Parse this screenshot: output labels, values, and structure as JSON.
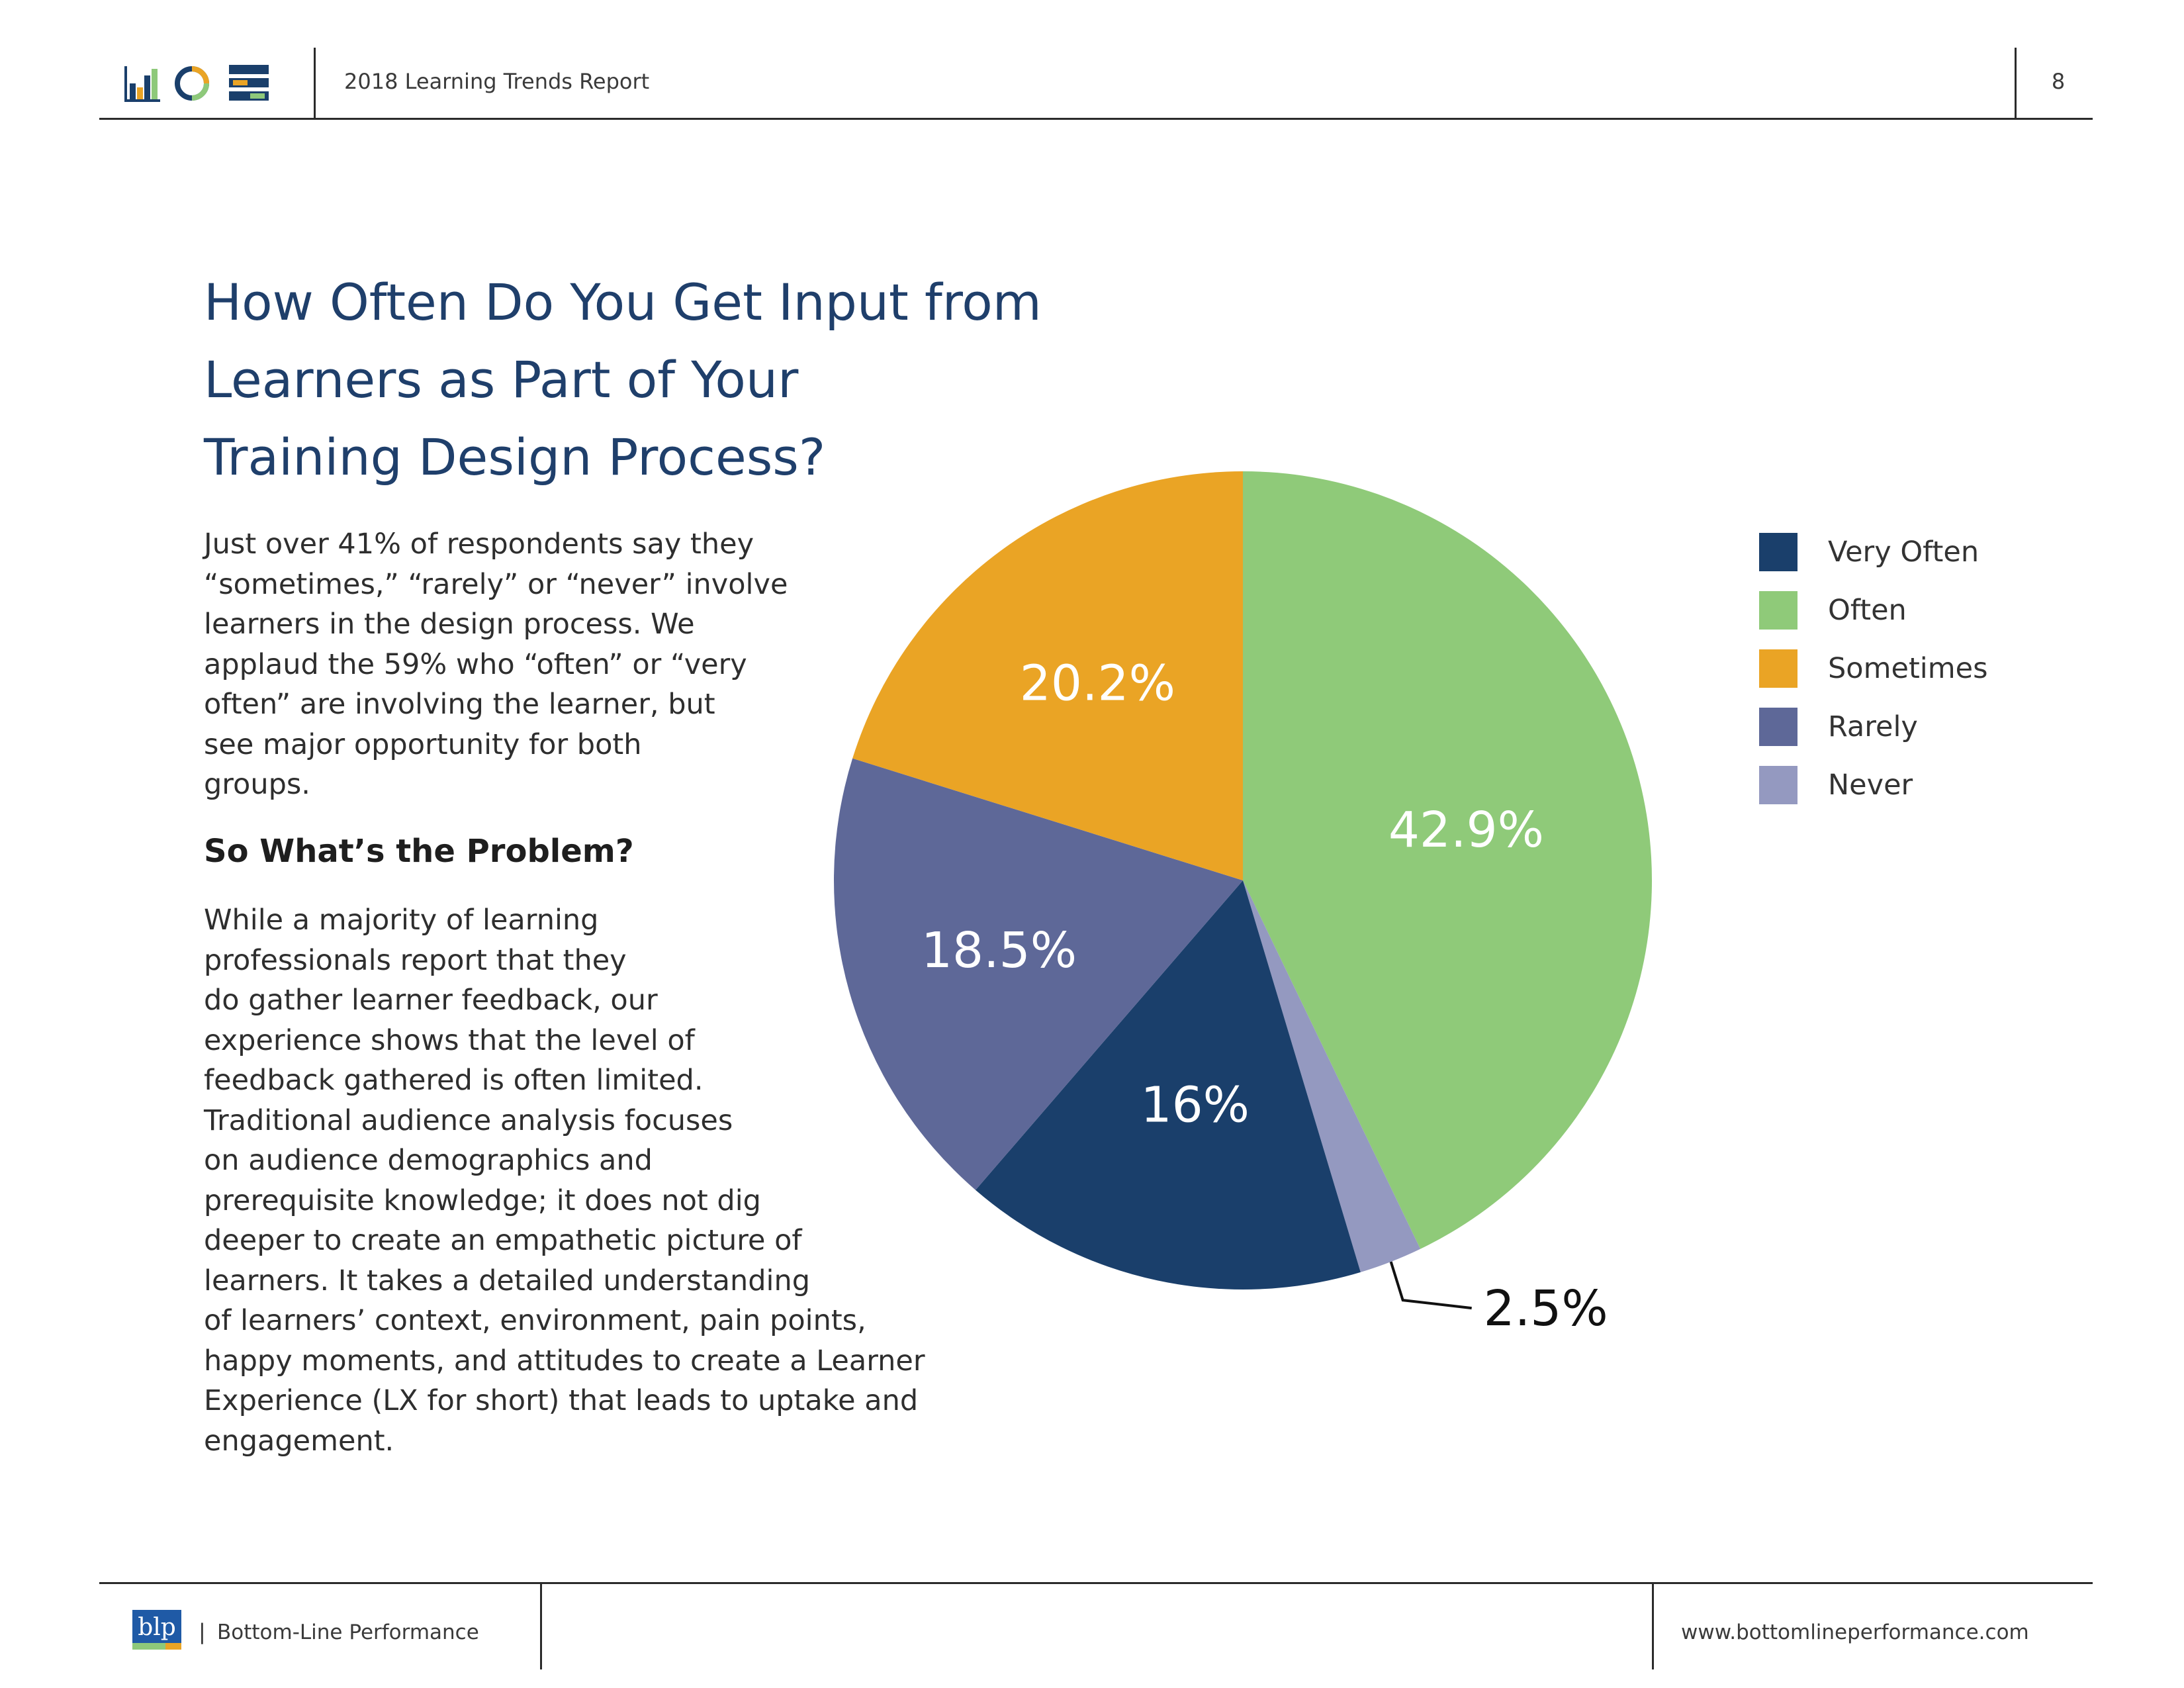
{
  "header": {
    "report_title": "2018 Learning Trends Report",
    "page_number": "8",
    "icon_colors": {
      "navy": "#1a3f6b",
      "green": "#8ec97a",
      "orange": "#eaa425"
    }
  },
  "main": {
    "title_lines": [
      "How Often Do You Get Input from",
      "Learners as Part of Your",
      "Training Design Process?"
    ],
    "intro_lines": [
      "Just over 41% of respondents say they",
      "“sometimes,” “rarely” or “never” involve",
      "learners in the design process. We",
      "applaud the 59% who “often” or “very",
      "often” are involving the learner, but",
      "see major opportunity for both",
      "groups."
    ],
    "subheading": "So What’s the Problem?",
    "problem_lines": [
      "While a majority of learning",
      "professionals report that they",
      "do gather learner feedback, our",
      "experience shows that the level of",
      "feedback gathered is often limited.",
      "Traditional audience analysis focuses",
      "on audience demographics and",
      "prerequisite knowledge; it does not dig",
      "deeper to create an empathetic picture of",
      "learners. It takes a detailed understanding",
      "of learners’ context, environment, pain points,",
      "happy moments, and attitudes to create a Learner",
      "Experience (LX for short) that leads to uptake and",
      "engagement."
    ]
  },
  "chart_data": {
    "type": "pie",
    "title": "How Often Do You Get Input from Learners as Part of Your Training Design Process?",
    "start": "12 o'clock, clockwise",
    "slices": [
      {
        "name": "Often",
        "value": 42.9,
        "label": "42.9%",
        "color": "#8fca79",
        "label_color": "#ffffff"
      },
      {
        "name": "Never",
        "value": 2.5,
        "label": "2.5%",
        "color": "#9499c0",
        "label_color": "#111111"
      },
      {
        "name": "Very Often",
        "value": 16.0,
        "label": "16%",
        "color": "#1a3f6b",
        "label_color": "#ffffff"
      },
      {
        "name": "Rarely",
        "value": 18.5,
        "label": "18.5%",
        "color": "#5e6898",
        "label_color": "#ffffff"
      },
      {
        "name": "Sometimes",
        "value": 20.2,
        "label": "20.2%",
        "color": "#eaa425",
        "label_color": "#ffffff"
      }
    ],
    "legend": [
      {
        "label": "Very Often",
        "color": "#1a3f6b"
      },
      {
        "label": "Often",
        "color": "#8fca79"
      },
      {
        "label": "Sometimes",
        "color": "#eaa425"
      },
      {
        "label": "Rarely",
        "color": "#5e6898"
      },
      {
        "label": "Never",
        "color": "#9499c0"
      }
    ],
    "legend_position": "right"
  },
  "footer": {
    "logo_text": "blp",
    "separator": "|",
    "company": "Bottom-Line Performance",
    "url": "www.bottomlineperformance.com",
    "logo_colors": {
      "blue": "#1f5aa6",
      "green": "#8ec97a",
      "orange": "#eaa425"
    }
  }
}
